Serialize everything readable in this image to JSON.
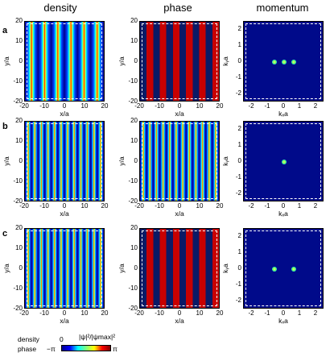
{
  "columns": {
    "density": "density",
    "phase": "phase",
    "momentum": "momentum"
  },
  "rows": [
    {
      "label": "a"
    },
    {
      "label": "b"
    },
    {
      "label": "c"
    }
  ],
  "axes": {
    "space_xlabel": "x/a",
    "space_ylabel": "y/a",
    "space_xticks": [
      "-20",
      "-10",
      "0",
      "10",
      "20"
    ],
    "space_yticks": [
      "20",
      "10",
      "0",
      "-10",
      "-20"
    ],
    "mom_xlabel": "kₓa",
    "mom_ylabel": "kᵧa",
    "mom_xticks": [
      "-2",
      "-1",
      "0",
      "1",
      "2"
    ],
    "mom_yticks": [
      "2",
      "1",
      "0",
      "-1",
      "-2"
    ]
  },
  "legend": {
    "density_label": "density",
    "density_min": "0",
    "density_max": "|ψ|²/|ψmax|²",
    "phase_label": "phase",
    "phase_min": "−π",
    "phase_max": "π"
  },
  "chart_data": {
    "type": "heatmap",
    "panels": [
      {
        "row": "a",
        "quantity": "density",
        "stripe_count": 6,
        "pattern": "broad cosine fringes"
      },
      {
        "row": "a",
        "quantity": "phase",
        "stripe_count": 6,
        "pattern": "alternating 0 / pi bands"
      },
      {
        "row": "a",
        "quantity": "momentum",
        "peaks_kx": [
          -0.6,
          0,
          0.6
        ],
        "peaks_ky": [
          0,
          0,
          0
        ]
      },
      {
        "row": "b",
        "quantity": "density",
        "stripe_count": 12,
        "pattern": "fine cosine fringes"
      },
      {
        "row": "b",
        "quantity": "phase",
        "stripe_count": 12,
        "pattern": "fine fringes"
      },
      {
        "row": "b",
        "quantity": "momentum",
        "peaks_kx": [
          0
        ],
        "peaks_ky": [
          0
        ]
      },
      {
        "row": "c",
        "quantity": "density",
        "stripe_count": 12,
        "pattern": "fine cosine fringes"
      },
      {
        "row": "c",
        "quantity": "phase",
        "stripe_count": 6,
        "pattern": "alternating 0 / pi bands"
      },
      {
        "row": "c",
        "quantity": "momentum",
        "peaks_kx": [
          -0.6,
          0.6
        ],
        "peaks_ky": [
          0,
          0
        ]
      }
    ],
    "space_range": [
      -20,
      20
    ],
    "momentum_range": [
      -2.5,
      2.5
    ]
  }
}
